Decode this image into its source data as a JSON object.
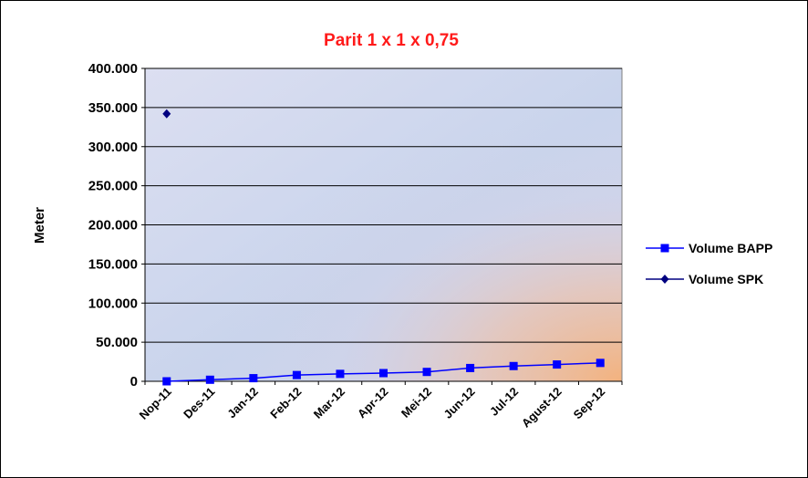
{
  "chart_data": {
    "type": "line",
    "title": "Parit 1 x 1 x 0,75",
    "xlabel": "",
    "ylabel": "Meter",
    "ylim": [
      0,
      400000
    ],
    "yticks": [
      "0",
      "50.000",
      "100.000",
      "150.000",
      "200.000",
      "250.000",
      "300.000",
      "350.000",
      "400.000"
    ],
    "categories": [
      "Nop-11",
      "Des-11",
      "Jan-12",
      "Feb-12",
      "Mar-12",
      "Apr-12",
      "Mei-12",
      "Jun-12",
      "Jul-12",
      "Agust-12",
      "Sep-12"
    ],
    "series": [
      {
        "name": "Volume BAPP",
        "color": "#0000ff",
        "marker": "square",
        "values": [
          0,
          2000,
          4000,
          8000,
          9500,
          10500,
          12000,
          17000,
          19500,
          21500,
          23500
        ]
      },
      {
        "name": "Volume SPK",
        "color": "#000080",
        "marker": "diamond",
        "values": [
          342000,
          null,
          null,
          null,
          null,
          null,
          null,
          null,
          null,
          null,
          null
        ]
      }
    ],
    "grid": true,
    "legend": "right",
    "plot_background": "gradient lavender-blue to orange (bottom-right)"
  }
}
